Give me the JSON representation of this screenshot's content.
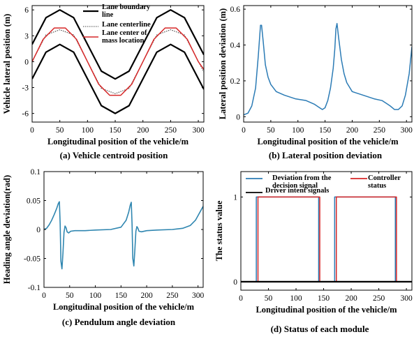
{
  "colors": {
    "black": "#000000",
    "red": "#d62728",
    "blue": "#2b7bb5",
    "teal": "#2f86b0",
    "dotted": "#444444"
  },
  "chart_data": [
    {
      "id": "a",
      "type": "line",
      "caption": "(a) Vehicle centroid position",
      "xlabel": "Longitudinal position of the vehicle/m",
      "ylabel": "Vehicle lateral position (m)",
      "xlim": [
        0,
        310
      ],
      "ylim": [
        -7,
        6.5
      ],
      "xticks": [
        0,
        50,
        100,
        150,
        200,
        250,
        300
      ],
      "yticks": [
        -6,
        -3,
        0,
        3,
        6
      ],
      "legend": [
        {
          "name": "Lane boundary line",
          "lines": [
            "Lane boundary",
            "line"
          ],
          "style": "solid-black"
        },
        {
          "name": "Lane centerline",
          "lines": [
            "Lane centerline"
          ],
          "style": "dotted-black"
        },
        {
          "name": "Lane center of mass location",
          "lines": [
            "Lane center of",
            "mass location"
          ],
          "style": "solid-red"
        }
      ],
      "legend_position": "top-right",
      "series": [
        {
          "style": "solid-black",
          "x": [
            0,
            25,
            50,
            75,
            100,
            125,
            150,
            175,
            200,
            225,
            250,
            275,
            310
          ],
          "y": [
            2,
            5.1,
            6,
            5.1,
            2,
            -1.1,
            -2,
            -1.1,
            2,
            5.1,
            6,
            5.1,
            0.8
          ]
        },
        {
          "style": "solid-black",
          "x": [
            0,
            25,
            50,
            75,
            100,
            125,
            150,
            175,
            200,
            225,
            250,
            275,
            310
          ],
          "y": [
            -2,
            1.1,
            2,
            1.1,
            -2,
            -5.1,
            -6,
            -5.1,
            -2,
            1.1,
            2,
            1.1,
            -3.2
          ]
        },
        {
          "style": "dotted-black",
          "x": [
            0,
            25,
            50,
            75,
            100,
            125,
            150,
            175,
            200,
            225,
            250,
            275,
            310
          ],
          "y": [
            0,
            3.1,
            3.7,
            3.1,
            0,
            -3.1,
            -3.7,
            -3.1,
            0,
            3.1,
            3.7,
            3.1,
            -1.2
          ]
        },
        {
          "style": "solid-red",
          "x": [
            0,
            20,
            40,
            60,
            80,
            100,
            120,
            140,
            160,
            180,
            200,
            220,
            240,
            260,
            280,
            300,
            310
          ],
          "y": [
            0,
            2.6,
            3.9,
            3.9,
            2.6,
            0,
            -2.6,
            -3.9,
            -3.9,
            -2.6,
            0,
            2.6,
            3.9,
            3.9,
            2.6,
            0,
            -0.9
          ]
        }
      ]
    },
    {
      "id": "b",
      "type": "line",
      "caption": "(b) Lateral position deviation",
      "xlabel": "Longitudinal position of the vehicle/m",
      "ylabel": "Lateral position deviation (m)",
      "xlim": [
        0,
        310
      ],
      "ylim": [
        -0.03,
        0.62
      ],
      "xticks": [
        0,
        50,
        100,
        150,
        200,
        250,
        300
      ],
      "yticks": [
        0,
        0.2,
        0.4,
        0.6
      ],
      "series": [
        {
          "style": "solid-blue",
          "x": [
            0,
            8,
            15,
            22,
            27,
            31,
            33,
            36,
            40,
            45,
            50,
            60,
            75,
            95,
            115,
            130,
            140,
            145,
            150,
            155,
            160,
            165,
            168,
            170,
            172,
            175,
            180,
            185,
            190,
            200,
            220,
            240,
            255,
            265,
            270,
            278,
            285,
            292,
            298,
            305,
            310
          ],
          "y": [
            0.01,
            0.02,
            0.06,
            0.16,
            0.34,
            0.51,
            0.51,
            0.42,
            0.29,
            0.22,
            0.18,
            0.14,
            0.12,
            0.1,
            0.09,
            0.07,
            0.05,
            0.04,
            0.05,
            0.09,
            0.16,
            0.27,
            0.38,
            0.49,
            0.52,
            0.44,
            0.32,
            0.24,
            0.19,
            0.14,
            0.12,
            0.1,
            0.09,
            0.07,
            0.06,
            0.04,
            0.04,
            0.06,
            0.12,
            0.24,
            0.39
          ]
        }
      ]
    },
    {
      "id": "c",
      "type": "line",
      "caption": "(c) Pendulum angle deviation",
      "xlabel": "Longitudinal position of the vehicle/m",
      "ylabel": "Heading angle deviation(rad)",
      "xlim": [
        0,
        310
      ],
      "ylim": [
        -0.1,
        0.1
      ],
      "xticks": [
        0,
        50,
        100,
        150,
        200,
        250,
        300
      ],
      "yticks": [
        -0.1,
        -0.05,
        0,
        0.05,
        0.1
      ],
      "series": [
        {
          "style": "solid-teal",
          "x": [
            0,
            5,
            10,
            15,
            20,
            25,
            28,
            30,
            31.5,
            33,
            35,
            37,
            39,
            41,
            43,
            45,
            48,
            52,
            60,
            80,
            100,
            130,
            150,
            160,
            165,
            168,
            170,
            171.5,
            173,
            175,
            177,
            179,
            181,
            183,
            185,
            190,
            200,
            220,
            250,
            270,
            285,
            295,
            300,
            305,
            310
          ],
          "y": [
            0,
            0.002,
            0.008,
            0.016,
            0.026,
            0.037,
            0.045,
            0.048,
            0.01,
            -0.055,
            -0.068,
            -0.04,
            -0.005,
            0.006,
            0.003,
            -0.004,
            -0.006,
            -0.003,
            -0.002,
            -0.002,
            -0.001,
            0,
            0.004,
            0.016,
            0.03,
            0.042,
            0.047,
            0.01,
            -0.05,
            -0.063,
            -0.035,
            -0.003,
            0.005,
            0.002,
            -0.003,
            -0.004,
            -0.002,
            -0.001,
            0,
            0.002,
            0.007,
            0.016,
            0.024,
            0.032,
            0.04
          ]
        }
      ]
    },
    {
      "id": "d",
      "type": "line",
      "caption": "(d) Status of each module",
      "xlabel": "Longitudinal position of the vehicle/m",
      "ylabel": "The status value",
      "xlim": [
        0,
        310
      ],
      "ylim": [
        -0.1,
        1.3
      ],
      "xticks": [
        0,
        50,
        100,
        150,
        200,
        250,
        300
      ],
      "yticks": [
        0,
        1
      ],
      "legend": [
        {
          "name": "Deviation from the decision signal",
          "lines": [
            "Deviation from the",
            "decision signal"
          ],
          "style": "solid-blue"
        },
        {
          "name": "Controller status",
          "lines": [
            "Controller",
            "status"
          ],
          "style": "solid-red"
        },
        {
          "name": "Driver intent signals",
          "lines": [
            "Driver intent signals"
          ],
          "style": "solid-black"
        }
      ],
      "legend_position": "top",
      "series": [
        {
          "style": "solid-blue",
          "x": [
            0,
            28,
            28,
            141,
            141,
            170,
            170,
            280,
            280,
            310
          ],
          "y": [
            0,
            0,
            1,
            1,
            0,
            0,
            1,
            1,
            0,
            0
          ]
        },
        {
          "style": "solid-red",
          "x": [
            0,
            31,
            31,
            143,
            143,
            173,
            173,
            282,
            282,
            310
          ],
          "y": [
            0,
            0,
            1,
            1,
            0,
            0,
            1,
            1,
            0,
            0
          ]
        },
        {
          "style": "solid-black",
          "x": [
            0,
            310
          ],
          "y": [
            0,
            0
          ]
        }
      ]
    }
  ]
}
